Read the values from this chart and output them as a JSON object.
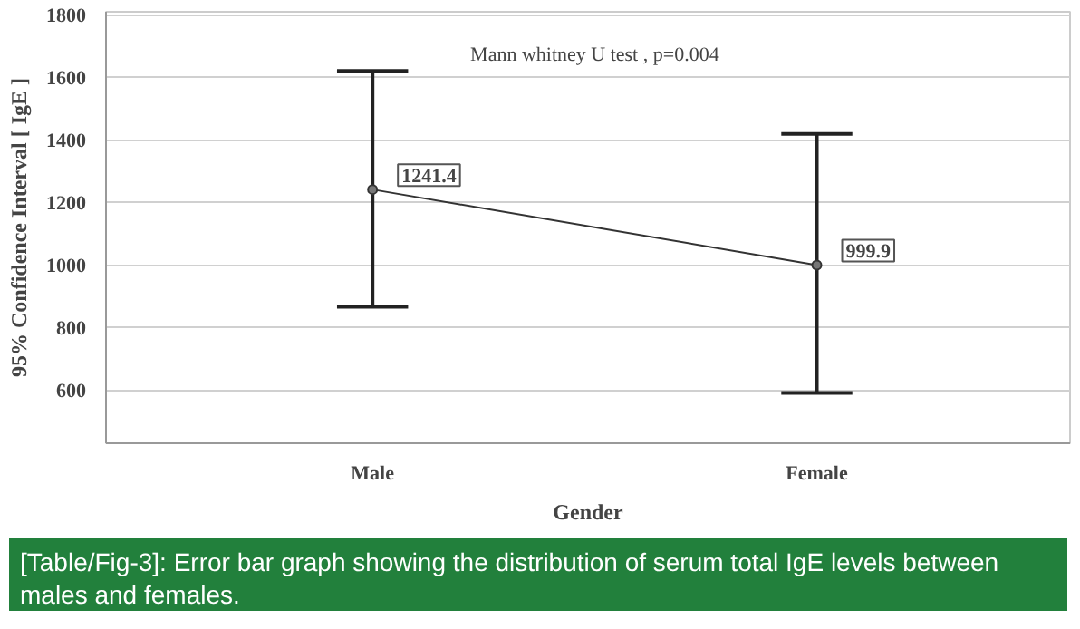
{
  "chart_data": {
    "type": "line",
    "categories": [
      "Male",
      "Female"
    ],
    "series": [
      {
        "color": "#333333",
        "values": [
          1241.4,
          999.9
        ],
        "errors": [
          [
            866,
            1621
          ],
          [
            591,
            1419
          ]
        ]
      }
    ],
    "data_labels": true,
    "marker": "circle",
    "line_style": "solid",
    "grid": "y",
    "xlabel": "Gender",
    "ylabel": "95% Confidence Interval [ IgE ]",
    "ylim": [
      430,
      1810
    ],
    "yticks": [
      600,
      800,
      1000,
      1200,
      1400,
      1600,
      1800
    ],
    "annotations": [
      "Mann whitney U test , p=0.004",
      "[Table/Fig-3]: Error bar graph showing the distribution of serum total IgE levels between males and females."
    ]
  }
}
